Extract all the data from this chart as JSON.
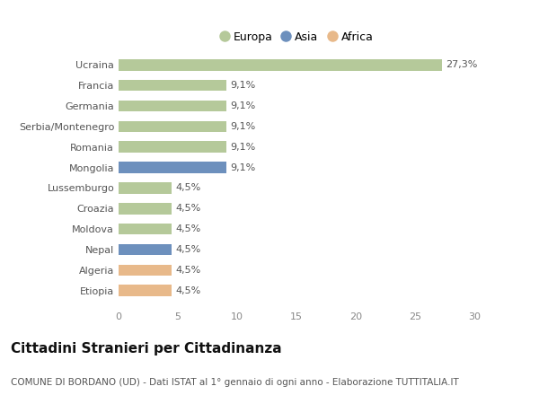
{
  "categories": [
    "Etiopia",
    "Algeria",
    "Nepal",
    "Moldova",
    "Croazia",
    "Lussemburgo",
    "Mongolia",
    "Romania",
    "Serbia/Montenegro",
    "Germania",
    "Francia",
    "Ucraina"
  ],
  "values": [
    4.5,
    4.5,
    4.5,
    4.5,
    4.5,
    4.5,
    9.1,
    9.1,
    9.1,
    9.1,
    9.1,
    27.3
  ],
  "labels": [
    "4,5%",
    "4,5%",
    "4,5%",
    "4,5%",
    "4,5%",
    "4,5%",
    "9,1%",
    "9,1%",
    "9,1%",
    "9,1%",
    "9,1%",
    "27,3%"
  ],
  "continent": [
    "Africa",
    "Africa",
    "Asia",
    "Europa",
    "Europa",
    "Europa",
    "Asia",
    "Europa",
    "Europa",
    "Europa",
    "Europa",
    "Europa"
  ],
  "colors": {
    "Europa": "#b5c99a",
    "Asia": "#6d90bd",
    "Africa": "#e8b98a"
  },
  "xlim": [
    0,
    30
  ],
  "xticks": [
    0,
    5,
    10,
    15,
    20,
    25,
    30
  ],
  "title": "Cittadini Stranieri per Cittadinanza",
  "subtitle": "COMUNE DI BORDANO (UD) - Dati ISTAT al 1° gennaio di ogni anno - Elaborazione TUTTITALIA.IT",
  "bg_color": "#ffffff",
  "bar_height": 0.55,
  "label_fontsize": 8,
  "ytick_fontsize": 8,
  "xtick_fontsize": 8,
  "title_fontsize": 11,
  "subtitle_fontsize": 7.5,
  "legend_fontsize": 9
}
